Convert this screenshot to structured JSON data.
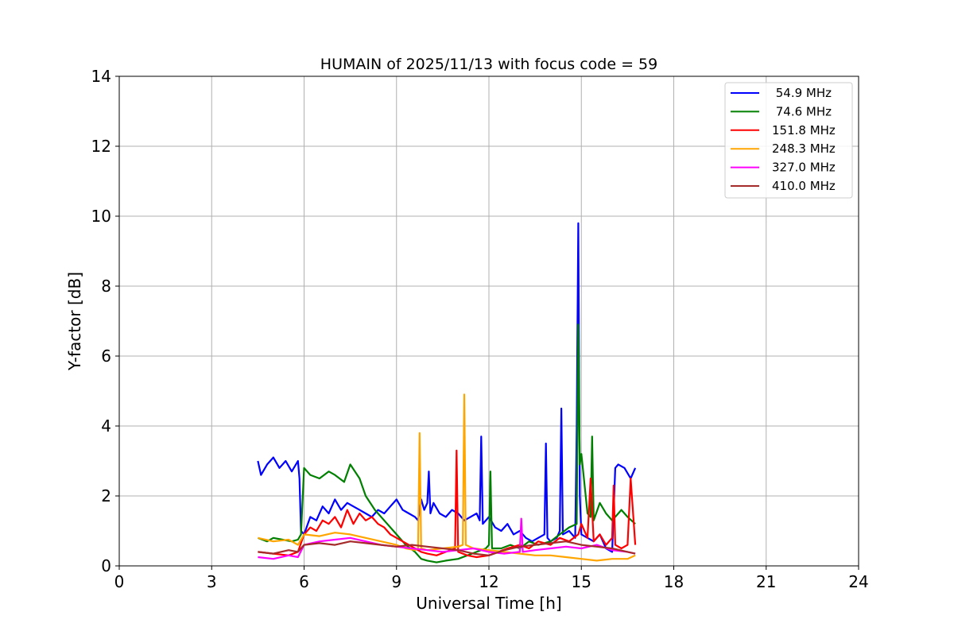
{
  "chart_data": {
    "type": "line",
    "title": "HUMAIN of 2025/11/13 with focus code = 59",
    "xlabel": "Universal Time [h]",
    "ylabel": "Y-factor [dB]",
    "xlim": [
      0,
      24
    ],
    "ylim": [
      0,
      14
    ],
    "xticks": [
      0,
      3,
      6,
      9,
      12,
      15,
      18,
      21,
      24
    ],
    "yticks": [
      0,
      2,
      4,
      6,
      8,
      10,
      12,
      14
    ],
    "xtick_labels": [
      "0",
      "3",
      "6",
      "9",
      "12",
      "15",
      "18",
      "21",
      "24"
    ],
    "ytick_labels": [
      "0",
      "2",
      "4",
      "6",
      "8",
      "10",
      "12",
      "14"
    ],
    "grid": true,
    "legend_position": "top-right",
    "series": [
      {
        "name": " 54.9 MHz",
        "color": "#0000ff",
        "x": [
          4.5,
          4.6,
          4.8,
          5.0,
          5.2,
          5.4,
          5.6,
          5.8,
          5.85,
          5.9,
          6.0,
          6.2,
          6.4,
          6.6,
          6.8,
          7.0,
          7.2,
          7.4,
          7.6,
          7.8,
          8.0,
          8.2,
          8.4,
          8.6,
          8.8,
          9.0,
          9.2,
          9.4,
          9.6,
          9.7,
          9.8,
          9.9,
          10.0,
          10.05,
          10.1,
          10.2,
          10.4,
          10.6,
          10.8,
          11.0,
          11.2,
          11.4,
          11.6,
          11.7,
          11.75,
          11.8,
          12.0,
          12.2,
          12.4,
          12.6,
          12.8,
          13.0,
          13.2,
          13.4,
          13.6,
          13.8,
          13.85,
          13.9,
          14.0,
          14.2,
          14.3,
          14.35,
          14.4,
          14.6,
          14.8,
          14.85,
          14.9,
          14.95,
          15.0,
          15.2,
          15.4,
          15.6,
          15.8,
          16.0,
          16.1,
          16.2,
          16.4,
          16.6,
          16.75
        ],
        "y": [
          3.0,
          2.6,
          2.9,
          3.1,
          2.8,
          3.0,
          2.7,
          3.0,
          2.5,
          1.0,
          0.9,
          1.4,
          1.3,
          1.7,
          1.5,
          1.9,
          1.6,
          1.8,
          1.7,
          1.6,
          1.5,
          1.4,
          1.6,
          1.5,
          1.7,
          1.9,
          1.6,
          1.5,
          1.4,
          1.3,
          1.9,
          1.6,
          1.8,
          2.7,
          1.5,
          1.8,
          1.5,
          1.4,
          1.6,
          1.5,
          1.3,
          1.4,
          1.5,
          1.3,
          3.7,
          1.2,
          1.4,
          1.1,
          1.0,
          1.2,
          0.9,
          1.0,
          0.8,
          0.7,
          0.8,
          0.9,
          3.5,
          0.8,
          0.7,
          0.8,
          1.0,
          4.5,
          0.9,
          1.0,
          0.8,
          3.9,
          9.8,
          2.0,
          0.9,
          0.8,
          0.7,
          0.9,
          0.5,
          0.4,
          2.8,
          2.9,
          2.8,
          2.5,
          2.8
        ]
      },
      {
        "name": " 74.6 MHz",
        "color": "#008000",
        "x": [
          4.5,
          4.8,
          5.0,
          5.3,
          5.6,
          5.8,
          5.9,
          6.0,
          6.2,
          6.5,
          6.8,
          7.0,
          7.3,
          7.5,
          7.8,
          8.0,
          8.3,
          8.6,
          9.0,
          9.3,
          9.6,
          9.8,
          10.0,
          10.3,
          10.6,
          11.0,
          11.3,
          11.6,
          11.9,
          12.0,
          12.05,
          12.1,
          12.4,
          12.7,
          13.0,
          13.3,
          13.6,
          14.0,
          14.3,
          14.6,
          14.85,
          14.9,
          14.95,
          15.0,
          15.2,
          15.3,
          15.35,
          15.4,
          15.6,
          15.8,
          16.0,
          16.3,
          16.5,
          16.75
        ],
        "y": [
          0.8,
          0.7,
          0.8,
          0.75,
          0.7,
          0.75,
          0.9,
          2.8,
          2.6,
          2.5,
          2.7,
          2.6,
          2.4,
          2.9,
          2.5,
          2.0,
          1.6,
          1.3,
          0.9,
          0.6,
          0.4,
          0.2,
          0.15,
          0.1,
          0.15,
          0.2,
          0.3,
          0.4,
          0.5,
          0.6,
          2.7,
          0.5,
          0.5,
          0.6,
          0.5,
          0.7,
          0.6,
          0.7,
          0.9,
          1.1,
          1.2,
          6.9,
          2.9,
          3.2,
          1.5,
          1.4,
          3.7,
          1.3,
          1.8,
          1.5,
          1.3,
          1.6,
          1.4,
          1.2
        ]
      },
      {
        "name": "151.8 MHz",
        "color": "#ff0000",
        "x": [
          4.5,
          5.0,
          5.5,
          5.8,
          6.0,
          6.2,
          6.4,
          6.6,
          6.8,
          7.0,
          7.2,
          7.4,
          7.6,
          7.8,
          8.0,
          8.2,
          8.4,
          8.6,
          8.8,
          9.0,
          9.2,
          9.4,
          9.6,
          9.8,
          10.0,
          10.3,
          10.6,
          10.9,
          10.95,
          11.0,
          11.3,
          11.6,
          12.0,
          12.3,
          12.6,
          13.0,
          13.3,
          13.6,
          14.0,
          14.3,
          14.6,
          14.9,
          15.0,
          15.2,
          15.3,
          15.4,
          15.6,
          15.8,
          16.0,
          16.05,
          16.1,
          16.3,
          16.5,
          16.6,
          16.75
        ],
        "y": [
          0.4,
          0.35,
          0.3,
          0.4,
          0.9,
          1.1,
          1.0,
          1.3,
          1.2,
          1.4,
          1.1,
          1.6,
          1.2,
          1.5,
          1.3,
          1.4,
          1.2,
          1.1,
          0.9,
          0.8,
          0.7,
          0.6,
          0.5,
          0.4,
          0.35,
          0.3,
          0.4,
          0.5,
          3.3,
          0.4,
          0.3,
          0.25,
          0.3,
          0.4,
          0.5,
          0.6,
          0.5,
          0.7,
          0.6,
          0.8,
          0.7,
          0.9,
          1.2,
          0.8,
          2.5,
          0.7,
          0.9,
          0.6,
          0.8,
          2.3,
          0.6,
          0.5,
          0.6,
          2.5,
          0.6
        ]
      },
      {
        "name": "248.3 MHz",
        "color": "#ffa500",
        "x": [
          4.5,
          5.0,
          5.5,
          5.8,
          6.0,
          6.5,
          7.0,
          7.5,
          8.0,
          8.5,
          9.0,
          9.3,
          9.6,
          9.7,
          9.75,
          9.8,
          10.0,
          10.5,
          11.0,
          11.15,
          11.2,
          11.25,
          11.5,
          12.0,
          12.5,
          13.0,
          13.5,
          14.0,
          14.5,
          15.0,
          15.5,
          16.0,
          16.5,
          16.75
        ],
        "y": [
          0.8,
          0.7,
          0.75,
          0.6,
          0.9,
          0.85,
          0.95,
          0.9,
          0.8,
          0.7,
          0.6,
          0.5,
          0.45,
          0.5,
          3.8,
          0.5,
          0.45,
          0.5,
          0.55,
          0.6,
          4.9,
          0.6,
          0.5,
          0.45,
          0.4,
          0.35,
          0.3,
          0.3,
          0.25,
          0.2,
          0.15,
          0.2,
          0.2,
          0.3
        ]
      },
      {
        "name": "327.0 MHz",
        "color": "#ff00ff",
        "x": [
          4.5,
          5.0,
          5.5,
          5.8,
          6.0,
          6.5,
          7.0,
          7.5,
          8.0,
          8.5,
          9.0,
          9.5,
          10.0,
          10.5,
          11.0,
          11.5,
          12.0,
          12.5,
          13.0,
          13.05,
          13.1,
          13.5,
          14.0,
          14.5,
          15.0,
          15.5,
          16.0,
          16.5,
          16.75
        ],
        "y": [
          0.25,
          0.2,
          0.3,
          0.25,
          0.6,
          0.7,
          0.75,
          0.8,
          0.7,
          0.6,
          0.55,
          0.5,
          0.45,
          0.4,
          0.45,
          0.5,
          0.4,
          0.35,
          0.4,
          1.35,
          0.4,
          0.45,
          0.5,
          0.55,
          0.5,
          0.6,
          0.45,
          0.4,
          0.35
        ]
      },
      {
        "name": "410.0 MHz",
        "color": "#a52a2a",
        "x": [
          4.5,
          5.0,
          5.5,
          5.8,
          6.0,
          6.5,
          7.0,
          7.5,
          8.0,
          8.5,
          9.0,
          9.5,
          10.0,
          10.5,
          11.0,
          11.5,
          12.0,
          12.5,
          13.0,
          13.5,
          14.0,
          14.5,
          15.0,
          15.5,
          16.0,
          16.5,
          16.75
        ],
        "y": [
          0.4,
          0.35,
          0.45,
          0.4,
          0.6,
          0.65,
          0.6,
          0.7,
          0.65,
          0.6,
          0.55,
          0.6,
          0.55,
          0.5,
          0.45,
          0.35,
          0.3,
          0.45,
          0.55,
          0.6,
          0.65,
          0.7,
          0.6,
          0.55,
          0.5,
          0.4,
          0.35
        ]
      }
    ]
  }
}
